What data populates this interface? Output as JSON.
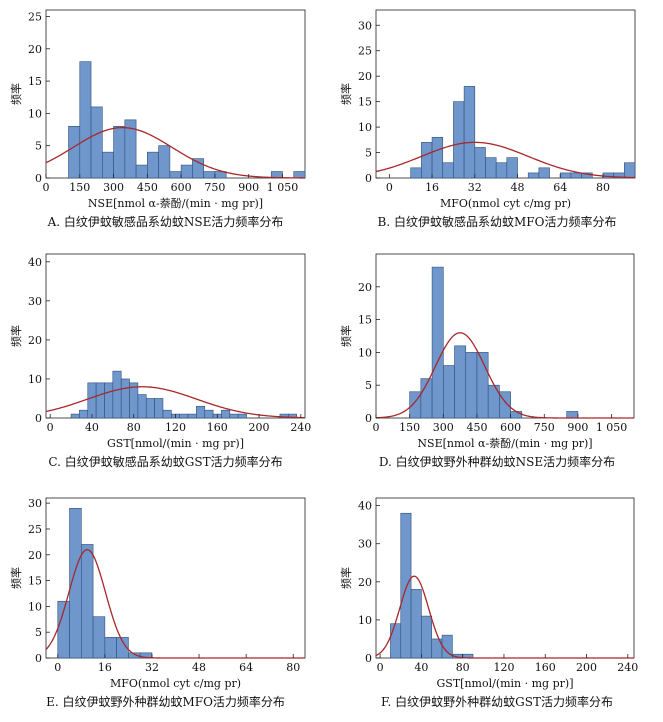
{
  "figure": {
    "name": "histogram-figure"
  },
  "colors": {
    "bar_fill": "#6f97cc",
    "bar_stroke": "#2f4f7a",
    "curve": "#a8282a",
    "axis": "#222222"
  },
  "chart_data": [
    {
      "type": "bar",
      "panel": "A",
      "caption": "A. 白纹伊蚊敏感品系幼蚊NSE活力频率分布",
      "xlabel": "NSE[nmol α-萘酚/(min · mg pr)]",
      "ylabel": "频率",
      "xlim": [
        0,
        1150
      ],
      "ylim": [
        0,
        26
      ],
      "xticks": [
        0,
        150,
        300,
        450,
        600,
        750,
        900,
        1050
      ],
      "xticklabels": [
        "0",
        "150",
        "300",
        "450",
        "600",
        "750",
        "900",
        "1 050"
      ],
      "yticks": [
        0,
        5,
        10,
        15,
        20,
        25
      ],
      "bin_width": 50,
      "bin_starts": [
        100,
        150,
        200,
        250,
        300,
        350,
        400,
        450,
        500,
        550,
        600,
        650,
        700,
        750,
        800,
        850,
        900,
        950,
        1000,
        1050,
        1100
      ],
      "values": [
        8,
        18,
        11,
        4,
        8,
        9,
        2,
        4,
        5,
        1,
        2,
        3,
        1,
        1,
        0,
        0,
        0,
        0,
        1,
        0,
        1
      ],
      "normal_fit": {
        "mean": 340,
        "sd": 220,
        "peak": 7.8
      }
    },
    {
      "type": "bar",
      "panel": "B",
      "caption": "B. 白纹伊蚊敏感品系幼蚊MFO活力频率分布",
      "xlabel": "MFO(nmol cyt c/mg pr)",
      "ylabel": "频率",
      "xlim": [
        -5,
        92
      ],
      "ylim": [
        0,
        33
      ],
      "xticks": [
        0,
        16,
        32,
        48,
        64,
        80
      ],
      "xticklabels": [
        "0",
        "16",
        "32",
        "48",
        "64",
        "80"
      ],
      "yticks": [
        0,
        5,
        10,
        15,
        20,
        25,
        30
      ],
      "bin_width": 4,
      "bin_starts": [
        8,
        12,
        16,
        20,
        24,
        28,
        32,
        36,
        40,
        44,
        48,
        52,
        56,
        60,
        64,
        68,
        72,
        76,
        80,
        84,
        88
      ],
      "values": [
        2,
        7,
        8,
        3,
        15,
        18,
        6,
        4,
        3,
        4,
        0,
        1,
        2,
        0,
        1,
        1,
        1,
        0,
        1,
        1,
        3
      ],
      "normal_fit": {
        "mean": 32,
        "sd": 20,
        "peak": 7
      }
    },
    {
      "type": "bar",
      "panel": "C",
      "caption": "C. 白纹伊蚊敏感品系幼蚊GST活力频率分布",
      "xlabel": "GST[nmol/(min · mg pr)]",
      "ylabel": "频率",
      "xlim": [
        -4,
        244
      ],
      "ylim": [
        0,
        42
      ],
      "xticks": [
        0,
        40,
        80,
        120,
        160,
        200,
        240
      ],
      "xticklabels": [
        "0",
        "40",
        "80",
        "120",
        "160",
        "200",
        "240"
      ],
      "yticks": [
        0,
        10,
        20,
        30,
        40
      ],
      "bin_width": 8,
      "bin_starts": [
        20,
        28,
        36,
        44,
        52,
        60,
        68,
        76,
        84,
        92,
        100,
        108,
        116,
        124,
        132,
        140,
        148,
        156,
        164,
        172,
        180,
        188,
        196,
        204,
        212,
        220,
        228
      ],
      "values": [
        1,
        2,
        9,
        9,
        9,
        12,
        10,
        9,
        6,
        5,
        5,
        2,
        1,
        1,
        1,
        3,
        2,
        1,
        2,
        1,
        1,
        0,
        0,
        0,
        0,
        1,
        1
      ],
      "normal_fit": {
        "mean": 88,
        "sd": 52,
        "peak": 8
      }
    },
    {
      "type": "bar",
      "panel": "D",
      "caption": "D. 白纹伊蚊野外种群幼蚊NSE活力频率分布",
      "xlabel": "NSE[nmol α-萘酚/(min · mg pr)]",
      "ylabel": "频率",
      "xlim": [
        0,
        1150
      ],
      "ylim": [
        0,
        25
      ],
      "xticks": [
        0,
        150,
        300,
        450,
        600,
        750,
        900,
        1050
      ],
      "xticklabels": [
        "0",
        "150",
        "300",
        "450",
        "600",
        "750",
        "900",
        "1 050"
      ],
      "yticks": [
        0,
        5,
        10,
        15,
        20
      ],
      "bin_width": 50,
      "bin_starts": [
        150,
        200,
        250,
        300,
        350,
        400,
        450,
        500,
        550,
        600,
        650,
        700,
        750,
        800,
        850
      ],
      "values": [
        4,
        6,
        23,
        8,
        11,
        10,
        10,
        5,
        4,
        1,
        0,
        0,
        0,
        0,
        1
      ],
      "normal_fit": {
        "mean": 375,
        "sd": 110,
        "peak": 13
      }
    },
    {
      "type": "bar",
      "panel": "E",
      "caption": "E. 白纹伊蚊野外种群幼蚊MFO活力频率分布",
      "xlabel": "MFO(nmol cyt c/mg pr)",
      "ylabel": "频率",
      "xlim": [
        -4,
        84
      ],
      "ylim": [
        0,
        31
      ],
      "xticks": [
        0,
        16,
        32,
        48,
        64,
        80
      ],
      "xticklabels": [
        "0",
        "16",
        "32",
        "48",
        "64",
        "80"
      ],
      "yticks": [
        0,
        5,
        10,
        15,
        20,
        25,
        30
      ],
      "bin_width": 4,
      "bin_starts": [
        0,
        4,
        8,
        12,
        16,
        20,
        24,
        28
      ],
      "values": [
        11,
        29,
        22,
        8,
        4,
        4,
        1,
        1
      ],
      "normal_fit": {
        "mean": 10,
        "sd": 6.2,
        "peak": 21
      }
    },
    {
      "type": "bar",
      "panel": "F",
      "caption": "F. 白纹伊蚊野外种群幼蚊GST活力频率分布",
      "xlabel": "GST[nmol/(min · mg pr)]",
      "ylabel": "频率",
      "xlim": [
        -4,
        246
      ],
      "ylim": [
        0,
        42
      ],
      "xticks": [
        0,
        40,
        80,
        120,
        160,
        200,
        240
      ],
      "xticklabels": [
        "0",
        "40",
        "80",
        "120",
        "160",
        "200",
        "240"
      ],
      "yticks": [
        0,
        10,
        20,
        30,
        40
      ],
      "bin_width": 10,
      "bin_starts": [
        10,
        20,
        30,
        40,
        50,
        60,
        70,
        80
      ],
      "values": [
        9,
        38,
        18,
        11,
        5,
        6,
        1,
        1
      ],
      "normal_fit": {
        "mean": 33,
        "sd": 14,
        "peak": 21.5
      }
    }
  ]
}
